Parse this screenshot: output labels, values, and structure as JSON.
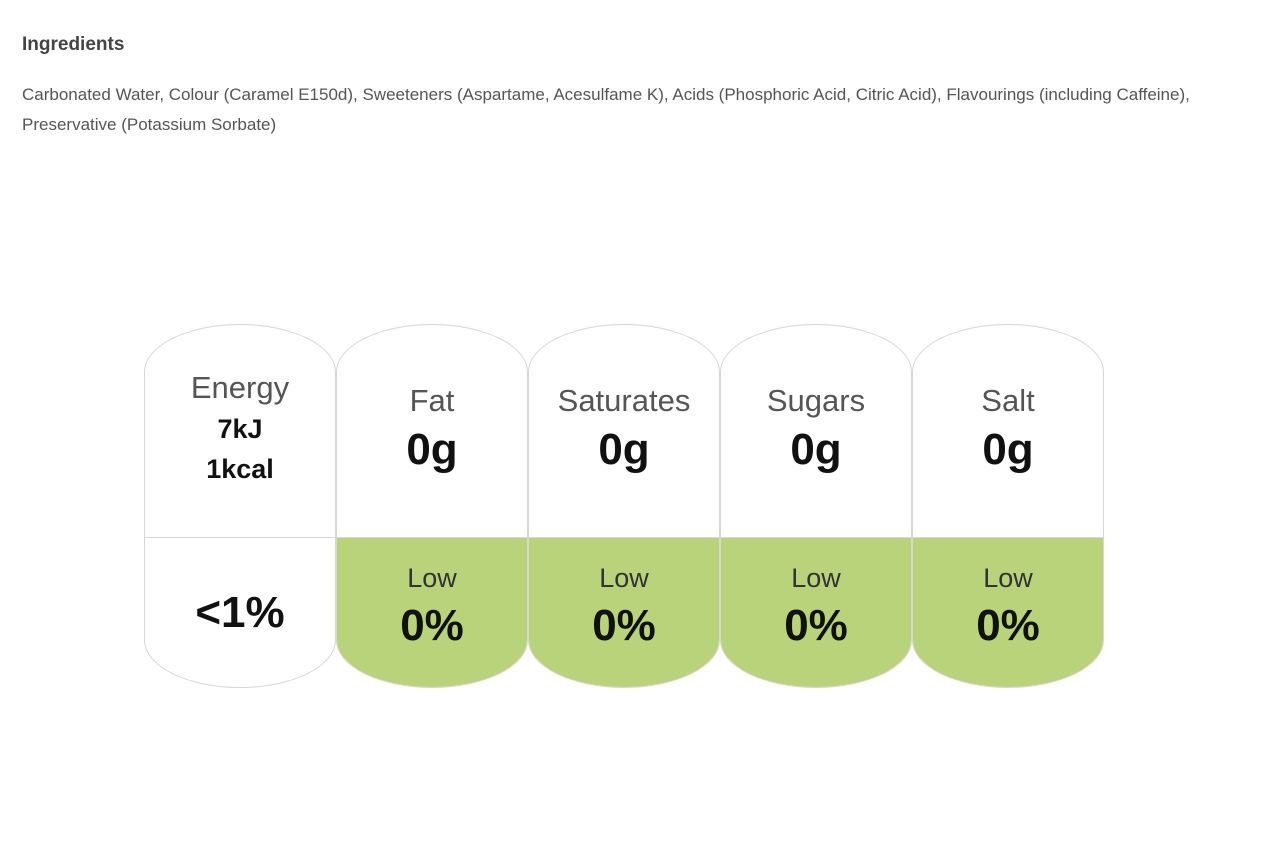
{
  "ingredients": {
    "heading": "Ingredients",
    "text": "Carbonated Water, Colour (Caramel E150d), Sweeteners (Aspartame, Acesulfame K), Acids (Phosphoric Acid, Citric Acid), Flavourings (including Caffeine), Preservative (Potassium Sorbate)"
  },
  "nutrition": {
    "energy": {
      "label": "Energy",
      "kj": "7kJ",
      "kcal": "1kcal",
      "percent": "<1%"
    },
    "fat": {
      "label": "Fat",
      "amount": "0g",
      "level": "Low",
      "percent": "0%"
    },
    "saturates": {
      "label": "Saturates",
      "amount": "0g",
      "level": "Low",
      "percent": "0%"
    },
    "sugars": {
      "label": "Sugars",
      "amount": "0g",
      "level": "Low",
      "percent": "0%"
    },
    "salt": {
      "label": "Salt",
      "amount": "0g",
      "level": "Low",
      "percent": "0%"
    }
  },
  "colors": {
    "low": "#b8d379",
    "border": "#d6d6d6"
  }
}
